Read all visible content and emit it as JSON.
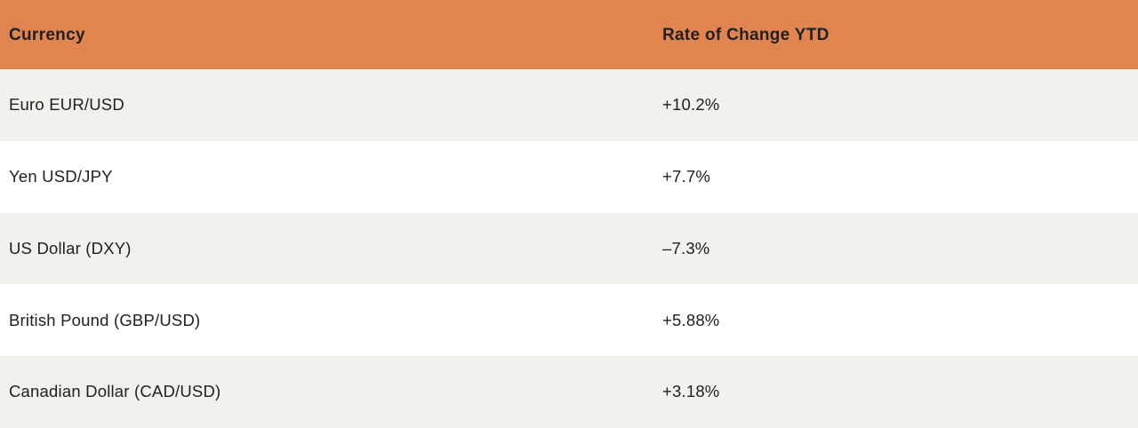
{
  "table": {
    "columns": {
      "currency_label": "Currency",
      "rate_label": "Rate of Change YTD"
    },
    "rows": [
      {
        "currency": "Euro EUR/USD",
        "rate": "+10.2%"
      },
      {
        "currency": "Yen USD/JPY",
        "rate": "+7.7%"
      },
      {
        "currency": "US Dollar (DXY)",
        "rate": "–7.3%"
      },
      {
        "currency": "British Pound (GBP/USD)",
        "rate": "+5.88%"
      },
      {
        "currency": "Canadian Dollar (CAD/USD)",
        "rate": "+3.18%"
      }
    ],
    "colors": {
      "header_bg": "#e0854f",
      "row_alt_bg": "#f2f1ec",
      "row_bg": "#ffffff",
      "text": "#232020"
    }
  },
  "chart_data": {
    "type": "table",
    "title": "",
    "columns": [
      "Currency",
      "Rate of Change YTD"
    ],
    "rows": [
      [
        "Euro EUR/USD",
        "+10.2%"
      ],
      [
        "Yen USD/JPY",
        "+7.7%"
      ],
      [
        "US Dollar (DXY)",
        "-7.3%"
      ],
      [
        "British Pound (GBP/USD)",
        "+5.88%"
      ],
      [
        "Canadian Dollar (CAD/USD)",
        "+3.18%"
      ]
    ],
    "categories": [
      "Euro EUR/USD",
      "Yen USD/JPY",
      "US Dollar (DXY)",
      "British Pound (GBP/USD)",
      "Canadian Dollar (CAD/USD)"
    ],
    "values": [
      10.2,
      7.7,
      -7.3,
      5.88,
      3.18
    ],
    "value_unit": "percent YTD change"
  }
}
